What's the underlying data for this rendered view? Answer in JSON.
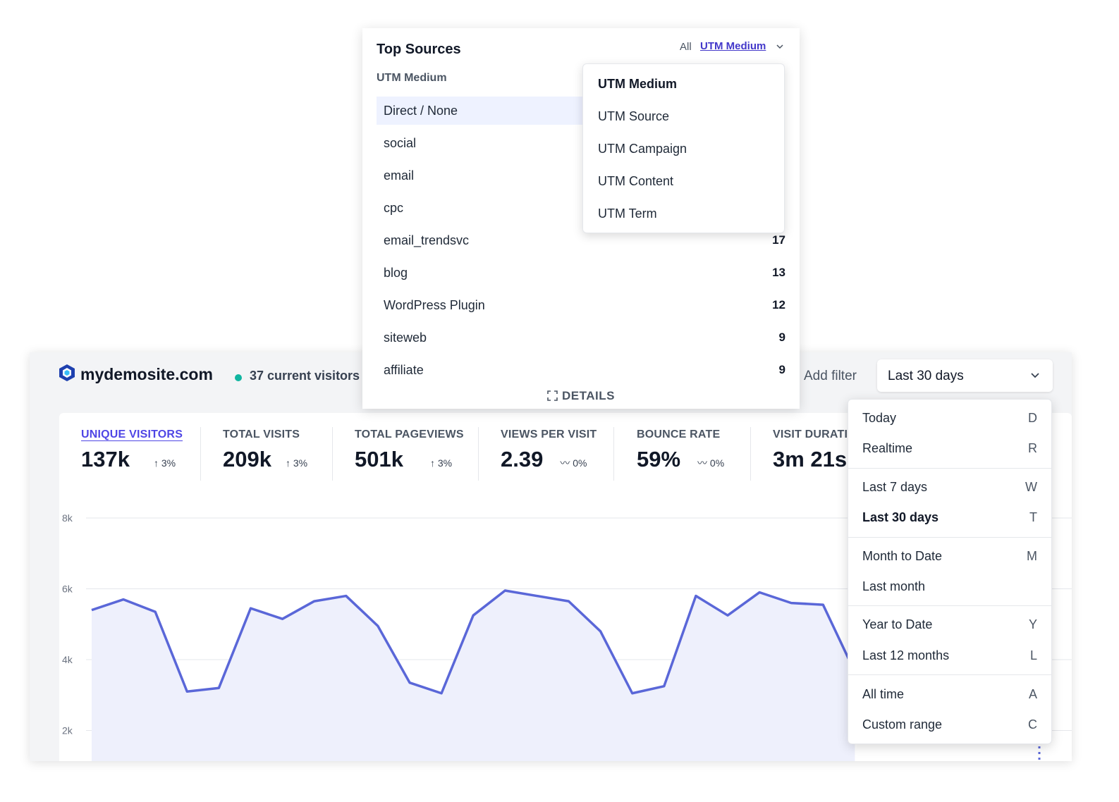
{
  "sources": {
    "title": "Top Sources",
    "all_label": "All",
    "active_label": "UTM Medium",
    "column_header": "UTM Medium",
    "rows": [
      {
        "name": "Direct / None",
        "count": "",
        "bar_fraction": 0.5
      },
      {
        "name": "social",
        "count": ""
      },
      {
        "name": "email",
        "count": ""
      },
      {
        "name": "cpc",
        "count": ""
      },
      {
        "name": "email_trendsvc",
        "count": "17"
      },
      {
        "name": "blog",
        "count": "13"
      },
      {
        "name": "WordPress Plugin",
        "count": "12"
      },
      {
        "name": "siteweb",
        "count": "9"
      },
      {
        "name": "affiliate",
        "count": "9"
      }
    ],
    "details_label": "DETAILS",
    "dropdown": {
      "items": [
        "UTM Medium",
        "UTM Source",
        "UTM Campaign",
        "UTM Content",
        "UTM Term"
      ],
      "selected": "UTM Medium"
    }
  },
  "header": {
    "site_name": "mydemosite.com",
    "current_visitors": "37 current visitors",
    "add_filter": "Add filter",
    "period": "Last 30 days"
  },
  "stats": [
    {
      "label": "UNIQUE VISITORS",
      "value": "137k",
      "change": "↑ 3%",
      "active": true
    },
    {
      "label": "TOTAL VISITS",
      "value": "209k",
      "change": "↑ 3%"
    },
    {
      "label": "TOTAL PAGEVIEWS",
      "value": "501k",
      "change": "↑ 3%"
    },
    {
      "label": "VIEWS PER VISIT",
      "value": "2.39",
      "change": "〰 0%"
    },
    {
      "label": "BOUNCE RATE",
      "value": "59%",
      "change": "〰 0%"
    },
    {
      "label": "VISIT DURATI",
      "value": "3m 21s",
      "change": ""
    }
  ],
  "date_menu": {
    "selected": "Last 30 days",
    "items": [
      {
        "label": "Today",
        "key": "D"
      },
      {
        "label": "Realtime",
        "key": "R"
      },
      {
        "label": "Last 7 days",
        "key": "W"
      },
      {
        "label": "Last 30 days",
        "key": "T"
      },
      {
        "label": "Month to Date",
        "key": "M"
      },
      {
        "label": "Last month",
        "key": ""
      },
      {
        "label": "Year to Date",
        "key": "Y"
      },
      {
        "label": "Last 12 months",
        "key": "L"
      },
      {
        "label": "All time",
        "key": "A"
      },
      {
        "label": "Custom range",
        "key": "C"
      }
    ]
  },
  "colors": {
    "accent": "#4f46e5",
    "line": "#5a67d8",
    "area_fill": "#eef0fc",
    "live_dot": "#10b5a0"
  },
  "chart_data": {
    "type": "area",
    "yticks": [
      "8k",
      "6k",
      "4k",
      "2k"
    ],
    "ylim": [
      0,
      8000
    ],
    "grid": true,
    "series": [
      {
        "values": [
          5400,
          5700,
          5350,
          3100,
          3200,
          5450,
          5150,
          5650,
          5800,
          4950,
          3350,
          3050,
          5250,
          5950,
          5800,
          5650,
          4800,
          3050,
          3250,
          5800,
          5250,
          5900,
          5600,
          5550,
          3650
        ]
      }
    ]
  }
}
